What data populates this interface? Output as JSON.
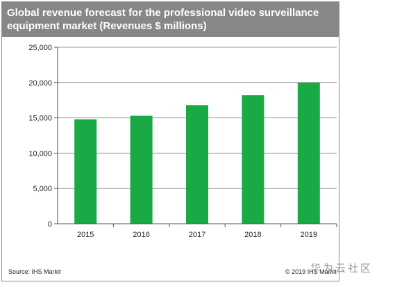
{
  "chart_data": {
    "type": "bar",
    "title_lines": [
      "Global revenue forecast for the professional video surveillance",
      "equipment market (Revenues $ millions)"
    ],
    "categories": [
      "2015",
      "2016",
      "2017",
      "2018",
      "2019"
    ],
    "values": [
      14800,
      15300,
      16800,
      18200,
      20000
    ],
    "y_ticks": [
      "0",
      "5,000",
      "10,000",
      "15,000",
      "20,000",
      "25,000"
    ],
    "ylim": [
      0,
      25000
    ],
    "grid": true,
    "bar_color": "#1aaa45",
    "source": "Source: IHS Markit",
    "copyright": "© 2019 IHS Markit"
  },
  "watermark": "华为云社区"
}
